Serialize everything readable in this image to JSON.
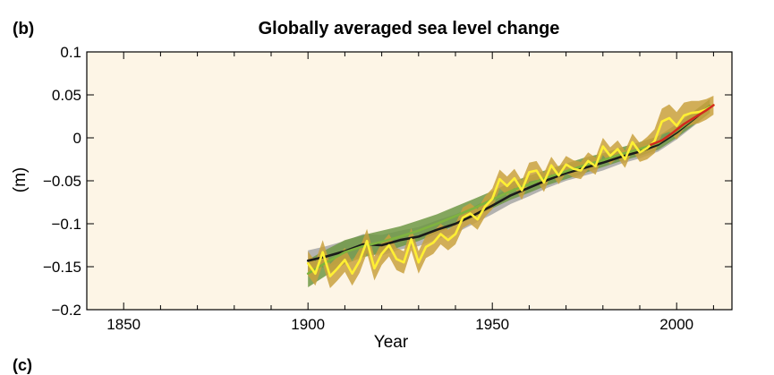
{
  "panel_label": "(b)",
  "next_panel_label": "(c)",
  "chart_data": {
    "type": "line",
    "title": "Globally averaged sea level change",
    "xlabel": "Year",
    "ylabel": "(m)",
    "xlim": [
      1840,
      2015
    ],
    "ylim": [
      -0.2,
      0.1
    ],
    "xticks": [
      1850,
      1900,
      1950,
      2000
    ],
    "yticks": [
      0.1,
      0.05,
      0,
      -0.05,
      -0.1,
      -0.15,
      -0.2
    ],
    "ytick_labels": [
      "0.1",
      "0.05",
      "0",
      "−0.05",
      "−0.1",
      "−0.15",
      "−0.2"
    ],
    "background": "#fdf5e6",
    "grid": false,
    "legend": "none",
    "series": [
      {
        "color": "#9e9e9e",
        "band_color": "#a6a6a6",
        "line_color": "#1a1a1a",
        "x": [
          1900,
          1905,
          1910,
          1915,
          1920,
          1925,
          1930,
          1935,
          1940,
          1945,
          1950,
          1955,
          1960,
          1965,
          1970,
          1975,
          1980,
          1985,
          1990,
          1995,
          2000,
          2005,
          2009
        ],
        "values": [
          -0.143,
          -0.138,
          -0.132,
          -0.124,
          -0.125,
          -0.119,
          -0.115,
          -0.107,
          -0.1,
          -0.09,
          -0.079,
          -0.067,
          -0.058,
          -0.049,
          -0.041,
          -0.035,
          -0.029,
          -0.022,
          -0.016,
          -0.008,
          0.006,
          0.023,
          0.037
        ],
        "band": [
          0.012,
          0.012,
          0.012,
          0.012,
          0.012,
          0.011,
          0.011,
          0.011,
          0.011,
          0.01,
          0.01,
          0.01,
          0.01,
          0.009,
          0.009,
          0.009,
          0.009,
          0.008,
          0.008,
          0.008,
          0.008,
          0.008,
          0.008
        ]
      },
      {
        "color": "#5e8a3a",
        "band_color": "#6f9845",
        "line_color": "#7fb33f",
        "x": [
          1900,
          1905,
          1910,
          1915,
          1920,
          1925,
          1930,
          1935,
          1940,
          1945,
          1950,
          1955,
          1960,
          1965,
          1970,
          1975,
          1980,
          1985,
          1990,
          1995,
          2000,
          2005,
          2009
        ],
        "values": [
          -0.158,
          -0.145,
          -0.133,
          -0.126,
          -0.121,
          -0.115,
          -0.108,
          -0.1,
          -0.091,
          -0.082,
          -0.072,
          -0.062,
          -0.054,
          -0.046,
          -0.039,
          -0.032,
          -0.026,
          -0.019,
          -0.013,
          -0.006,
          0.008,
          0.024,
          0.037
        ],
        "band": [
          0.016,
          0.015,
          0.014,
          0.013,
          0.013,
          0.012,
          0.012,
          0.011,
          0.011,
          0.011,
          0.01,
          0.01,
          0.01,
          0.009,
          0.009,
          0.009,
          0.008,
          0.008,
          0.008,
          0.008,
          0.008,
          0.008,
          0.008
        ]
      },
      {
        "color": "#c8a640",
        "band_color": "#c9a13e",
        "line_color": "#fff033",
        "x": [
          1900,
          1902,
          1904,
          1906,
          1908,
          1910,
          1912,
          1914,
          1916,
          1918,
          1920,
          1922,
          1924,
          1926,
          1928,
          1930,
          1932,
          1934,
          1936,
          1938,
          1940,
          1942,
          1944,
          1946,
          1948,
          1950,
          1952,
          1954,
          1956,
          1958,
          1960,
          1962,
          1964,
          1966,
          1968,
          1970,
          1972,
          1974,
          1976,
          1978,
          1980,
          1982,
          1984,
          1986,
          1988,
          1990,
          1992,
          1994,
          1996,
          1998,
          2000,
          2002,
          2004,
          2006,
          2008,
          2010
        ],
        "values": [
          -0.146,
          -0.158,
          -0.133,
          -0.161,
          -0.152,
          -0.142,
          -0.158,
          -0.143,
          -0.12,
          -0.152,
          -0.135,
          -0.125,
          -0.141,
          -0.145,
          -0.118,
          -0.145,
          -0.127,
          -0.122,
          -0.112,
          -0.119,
          -0.112,
          -0.093,
          -0.088,
          -0.095,
          -0.08,
          -0.071,
          -0.048,
          -0.056,
          -0.047,
          -0.061,
          -0.04,
          -0.038,
          -0.052,
          -0.032,
          -0.044,
          -0.031,
          -0.036,
          -0.038,
          -0.027,
          -0.033,
          -0.01,
          -0.021,
          -0.013,
          -0.025,
          -0.005,
          -0.017,
          -0.012,
          -0.004,
          0.019,
          0.023,
          0.014,
          0.026,
          0.029,
          0.03,
          0.033,
          0.038
        ],
        "band": [
          0.014,
          0.014,
          0.014,
          0.014,
          0.014,
          0.014,
          0.014,
          0.014,
          0.014,
          0.014,
          0.013,
          0.013,
          0.013,
          0.013,
          0.013,
          0.013,
          0.013,
          0.013,
          0.012,
          0.012,
          0.012,
          0.012,
          0.012,
          0.012,
          0.012,
          0.012,
          0.011,
          0.011,
          0.011,
          0.011,
          0.011,
          0.011,
          0.011,
          0.01,
          0.01,
          0.01,
          0.01,
          0.01,
          0.01,
          0.01,
          0.01,
          0.01,
          0.01,
          0.01,
          0.01,
          0.011,
          0.013,
          0.014,
          0.015,
          0.016,
          0.016,
          0.015,
          0.014,
          0.013,
          0.012,
          0.011
        ]
      },
      {
        "color": "#d22a1e",
        "line_color": "#d22a1e",
        "x": [
          1993,
          1996,
          1999,
          2002,
          2005,
          2008,
          2010
        ],
        "values": [
          -0.008,
          -0.003,
          0.006,
          0.016,
          0.024,
          0.032,
          0.038
        ],
        "band": []
      }
    ]
  }
}
